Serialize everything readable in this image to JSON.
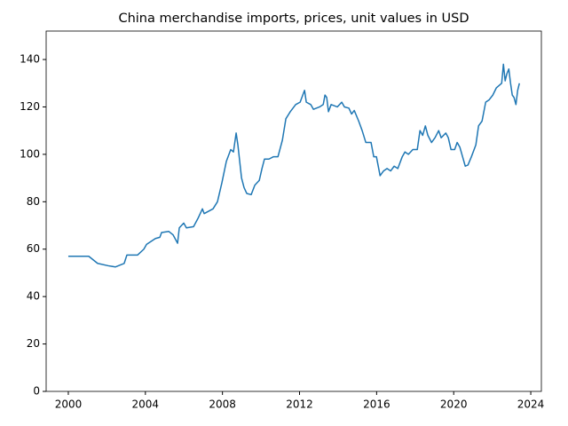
{
  "chart_data": {
    "type": "line",
    "title": "China merchandise imports, prices, unit values in USD",
    "x": [
      2000.0,
      2001.06,
      2001.52,
      2002.07,
      2002.44,
      2002.9,
      2003.04,
      2003.59,
      2003.92,
      2004.06,
      2004.52,
      2004.75,
      2004.84,
      2005.21,
      2005.44,
      2005.67,
      2005.76,
      2005.99,
      2006.13,
      2006.5,
      2006.73,
      2006.96,
      2007.05,
      2007.51,
      2007.74,
      2007.97,
      2008.2,
      2008.43,
      2008.57,
      2008.71,
      2008.8,
      2008.99,
      2009.12,
      2009.26,
      2009.49,
      2009.68,
      2009.91,
      2010.05,
      2010.18,
      2010.41,
      2010.65,
      2010.88,
      2011.11,
      2011.29,
      2011.52,
      2011.8,
      2012.03,
      2012.26,
      2012.35,
      2012.58,
      2012.72,
      2013.04,
      2013.23,
      2013.32,
      2013.41,
      2013.5,
      2013.64,
      2013.96,
      2014.19,
      2014.33,
      2014.56,
      2014.7,
      2014.84,
      2015.07,
      2015.25,
      2015.44,
      2015.71,
      2015.85,
      2015.99,
      2016.18,
      2016.36,
      2016.54,
      2016.73,
      2016.91,
      2017.1,
      2017.33,
      2017.47,
      2017.65,
      2017.88,
      2018.11,
      2018.25,
      2018.39,
      2018.53,
      2018.66,
      2018.85,
      2019.03,
      2019.22,
      2019.35,
      2019.59,
      2019.72,
      2019.86,
      2020.05,
      2020.18,
      2020.32,
      2020.46,
      2020.6,
      2020.74,
      2020.92,
      2021.15,
      2021.29,
      2021.47,
      2021.66,
      2021.84,
      2022.03,
      2022.21,
      2022.35,
      2022.49,
      2022.58,
      2022.67,
      2022.76,
      2022.86,
      2022.95,
      2023.04,
      2023.13,
      2023.23,
      2023.32,
      2023.41
    ],
    "series": [
      {
        "color": "#1f77b4",
        "values": [
          57,
          57,
          54,
          53,
          52.5,
          54,
          57.5,
          57.5,
          60,
          62,
          64.5,
          65,
          67,
          67.5,
          66,
          62.5,
          69,
          71,
          69,
          69.5,
          73,
          77,
          75,
          77,
          80,
          88,
          97,
          102,
          101,
          109,
          104,
          90,
          86,
          83.5,
          83,
          87,
          89,
          94,
          98,
          98,
          99,
          99,
          106,
          115,
          118,
          121,
          122,
          127,
          122,
          121,
          119,
          120,
          121,
          125,
          124,
          118,
          121,
          120,
          122,
          120,
          119.5,
          117,
          118.5,
          114,
          110,
          105,
          105,
          99,
          99,
          91,
          93,
          94,
          93,
          95,
          94,
          99,
          101,
          100,
          102,
          102,
          110,
          108,
          112,
          108,
          105,
          107,
          110,
          107,
          109,
          107,
          102,
          102,
          105,
          103,
          99,
          95,
          95.5,
          99,
          104,
          112,
          114,
          122,
          123,
          125,
          128,
          129,
          130,
          138,
          131,
          134,
          136,
          130,
          125,
          124,
          121,
          127,
          130
        ]
      }
    ],
    "xlim": [
      1998.85,
      2024.55
    ],
    "xticks": [
      2000,
      2004,
      2008,
      2012,
      2016,
      2020,
      2024
    ],
    "ylim": [
      0,
      152
    ],
    "yticks": [
      0,
      20,
      40,
      60,
      80,
      100,
      120,
      140
    ],
    "grid": false
  }
}
